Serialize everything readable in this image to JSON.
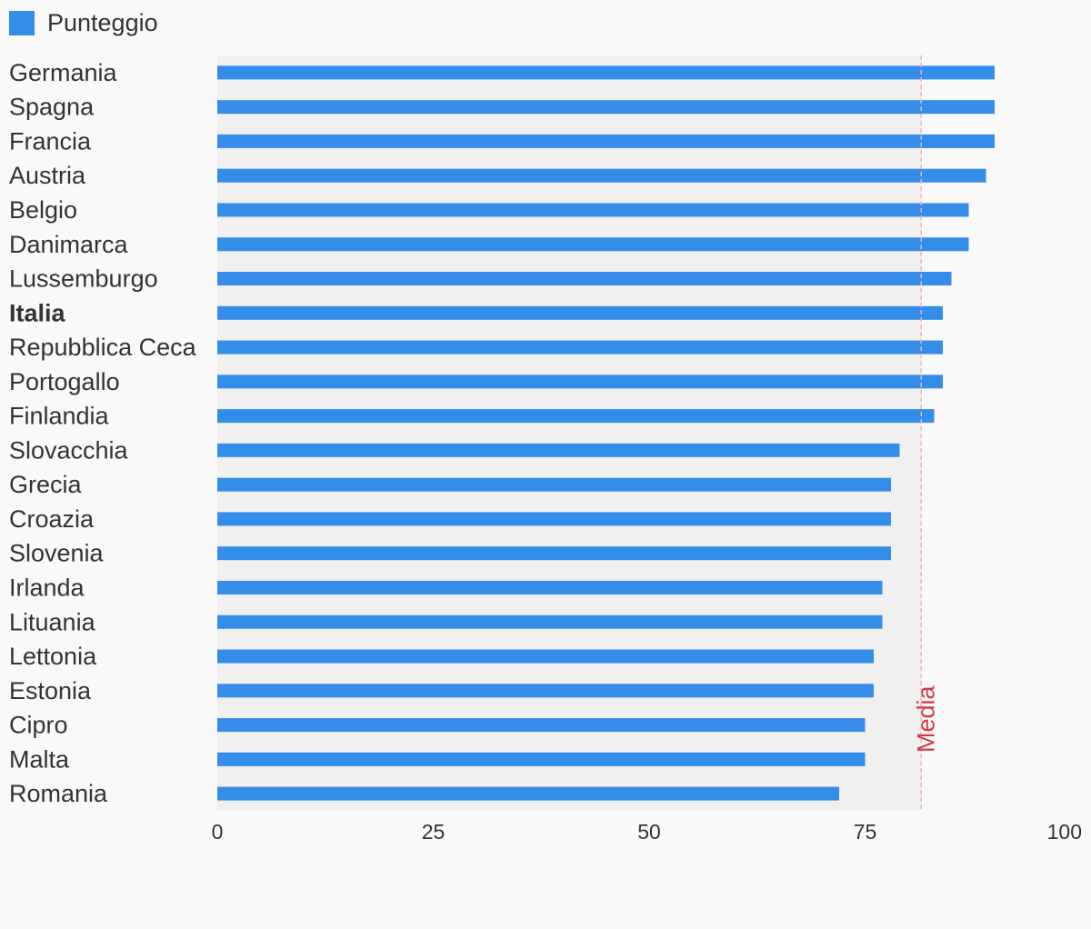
{
  "chart_data": {
    "type": "bar",
    "orientation": "horizontal",
    "legend": {
      "label": "Punteggio",
      "position": "top-left"
    },
    "categories": [
      "Germania",
      "Spagna",
      "Francia",
      "Austria",
      "Belgio",
      "Danimarca",
      "Lussemburgo",
      "Italia",
      "Repubblica Ceca",
      "Portogallo",
      "Finlandia",
      "Slovacchia",
      "Grecia",
      "Croazia",
      "Slovenia",
      "Irlanda",
      "Lituania",
      "Lettonia",
      "Estonia",
      "Cipro",
      "Malta",
      "Romania"
    ],
    "highlighted": "Italia",
    "series": [
      {
        "name": "Punteggio",
        "values": [
          90,
          90,
          90,
          89,
          87,
          87,
          85,
          84,
          84,
          84,
          83,
          79,
          78,
          78,
          78,
          77,
          77,
          76,
          76,
          75,
          75,
          72
        ]
      }
    ],
    "xlim": [
      0,
      100
    ],
    "xticks": [
      0,
      25,
      50,
      75,
      100
    ],
    "reference_line": {
      "label": "Media",
      "value": 81.5
    },
    "colors": {
      "bar": "#358fee0",
      "media": "#d23a4a",
      "plot_bg": "#f0f0f0"
    }
  }
}
